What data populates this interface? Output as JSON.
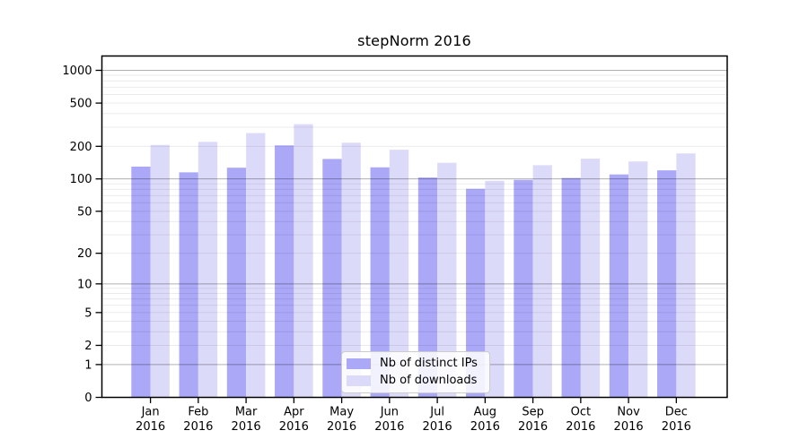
{
  "title": "stepNorm 2016",
  "chart_data": {
    "type": "bar",
    "title": "stepNorm 2016",
    "yscale": "log1p",
    "grid": true,
    "legend_position": "lower center",
    "xlabel": "",
    "ylabel": "",
    "categories": [
      "Jan 2016",
      "Feb 2016",
      "Mar 2016",
      "Apr 2016",
      "May 2016",
      "Jun 2016",
      "Jul 2016",
      "Aug 2016",
      "Sep 2016",
      "Oct 2016",
      "Nov 2016",
      "Dec 2016"
    ],
    "series": [
      {
        "name": "Nb of distinct IPs",
        "color": "#aaa8f7",
        "values": [
          130,
          115,
          127,
          204,
          153,
          128,
          103,
          81,
          98,
          102,
          110,
          120
        ]
      },
      {
        "name": "Nb of downloads",
        "color": "#dcdaf9",
        "values": [
          206,
          220,
          265,
          320,
          216,
          186,
          141,
          96,
          134,
          154,
          145,
          172
        ]
      }
    ],
    "yticks": [
      0,
      1,
      2,
      5,
      10,
      20,
      50,
      100,
      200,
      500,
      1000
    ],
    "ylim": [
      0,
      1350
    ],
    "colors": {
      "major_grid": "#b0b0b0",
      "minor_grid": "#e8e8e8",
      "axis": "#000000",
      "background": "#ffffff"
    }
  }
}
